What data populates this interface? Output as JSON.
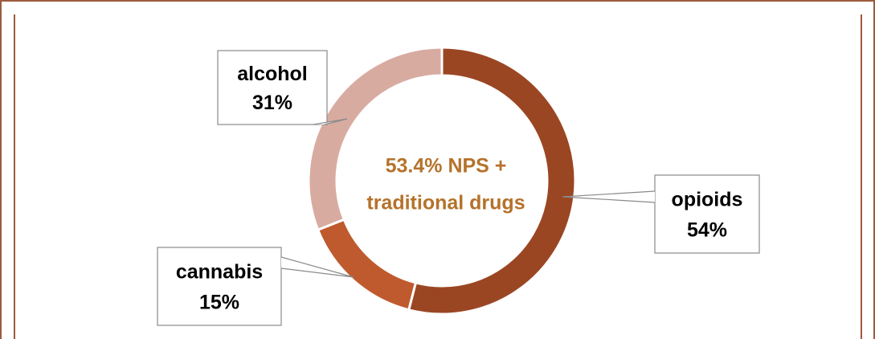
{
  "chart_data": {
    "type": "donut",
    "categories": [
      "opioids",
      "cannabis",
      "alcohol"
    ],
    "values": [
      54,
      15,
      31
    ],
    "value_labels": [
      "54%",
      "15%",
      "31%"
    ],
    "colors": [
      "#9b4623",
      "#bf5a2e",
      "#d8aba1"
    ],
    "annotation": [
      "53.4% NPS +",
      "traditional drugs"
    ]
  }
}
